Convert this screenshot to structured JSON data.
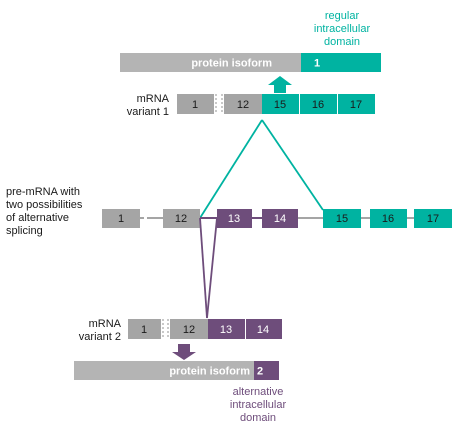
{
  "colors": {
    "teal": "#00b3a1",
    "purple": "#6e4d7b",
    "gray_box": "#a5a5a5",
    "gray_bar": "#b4b4b4",
    "text": "#1a1a1a",
    "white": "#ffffff"
  },
  "top": {
    "caption_line1": "regular",
    "caption_line2": "intracellular",
    "caption_line3": "domain",
    "protein_label": "protein isoform",
    "protein_number": "1",
    "mrna_label_line1": "mRNA",
    "mrna_label_line2": "variant 1",
    "exons": [
      "1",
      "12",
      "15",
      "16",
      "17"
    ]
  },
  "middle": {
    "label_line1": "pre-mRNA with",
    "label_line2": "two possibilities",
    "label_line3": "of alternative",
    "label_line4": "splicing",
    "exons": [
      "1",
      "12",
      "13",
      "14",
      "15",
      "16",
      "17"
    ]
  },
  "bottom": {
    "mrna_label_line1": "mRNA",
    "mrna_label_line2": "variant 2",
    "exons": [
      "1",
      "12",
      "13",
      "14"
    ],
    "protein_label": "protein isoform",
    "protein_number": "2",
    "caption_line1": "alternative",
    "caption_line2": "intracellular",
    "caption_line3": "domain"
  }
}
